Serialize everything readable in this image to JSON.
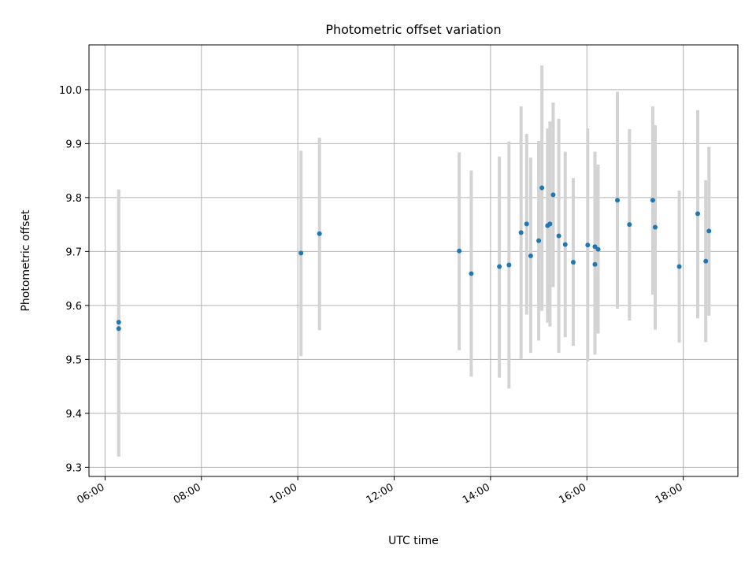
{
  "chart_data": {
    "type": "scatter",
    "title": "Photometric offset variation",
    "xlabel": "UTC time",
    "ylabel": "Photometric offset",
    "grid": true,
    "x_is_time": true,
    "xlim": [
      "05:40",
      "19:08"
    ],
    "ylim": [
      9.283,
      10.083
    ],
    "x_ticks": [
      "06:00",
      "08:00",
      "10:00",
      "12:00",
      "14:00",
      "16:00",
      "18:00"
    ],
    "y_ticks": [
      "9.3",
      "9.4",
      "9.5",
      "9.6",
      "9.7",
      "9.8",
      "9.9",
      "10.0"
    ],
    "colors": {
      "point": "#1f77b4",
      "errorbar": "#d3d3d3"
    },
    "series": [
      {
        "points": [
          {
            "x": "06:17",
            "y": 9.569,
            "lo": 9.32,
            "hi": 9.815
          },
          {
            "x": "06:17",
            "y": 9.557,
            "lo": 9.32,
            "hi": 9.795
          },
          {
            "x": "10:04",
            "y": 9.697,
            "lo": 9.506,
            "hi": 9.887
          },
          {
            "x": "10:27",
            "y": 9.733,
            "lo": 9.554,
            "hi": 9.911
          },
          {
            "x": "13:21",
            "y": 9.701,
            "lo": 9.517,
            "hi": 9.884
          },
          {
            "x": "13:36",
            "y": 9.659,
            "lo": 9.468,
            "hi": 9.85
          },
          {
            "x": "14:11",
            "y": 9.672,
            "lo": 9.466,
            "hi": 9.876
          },
          {
            "x": "14:23",
            "y": 9.675,
            "lo": 9.446,
            "hi": 9.904
          },
          {
            "x": "14:38",
            "y": 9.735,
            "lo": 9.501,
            "hi": 9.969
          },
          {
            "x": "14:45",
            "y": 9.751,
            "lo": 9.583,
            "hi": 9.918
          },
          {
            "x": "14:50",
            "y": 9.692,
            "lo": 9.512,
            "hi": 9.874
          },
          {
            "x": "15:00",
            "y": 9.72,
            "lo": 9.535,
            "hi": 9.905
          },
          {
            "x": "15:04",
            "y": 9.818,
            "lo": 9.59,
            "hi": 10.045
          },
          {
            "x": "15:11",
            "y": 9.748,
            "lo": 9.568,
            "hi": 9.928
          },
          {
            "x": "15:14",
            "y": 9.751,
            "lo": 9.561,
            "hi": 9.941
          },
          {
            "x": "15:18",
            "y": 9.805,
            "lo": 9.634,
            "hi": 9.976
          },
          {
            "x": "15:25",
            "y": 9.729,
            "lo": 9.512,
            "hi": 9.946
          },
          {
            "x": "15:33",
            "y": 9.713,
            "lo": 9.541,
            "hi": 9.885
          },
          {
            "x": "15:43",
            "y": 9.68,
            "lo": 9.525,
            "hi": 9.836
          },
          {
            "x": "16:01",
            "y": 9.712,
            "lo": 9.496,
            "hi": 9.928
          },
          {
            "x": "16:10",
            "y": 9.709,
            "lo": 9.509,
            "hi": 9.885
          },
          {
            "x": "16:10",
            "y": 9.676,
            "lo": 9.509,
            "hi": 9.843
          },
          {
            "x": "16:14",
            "y": 9.704,
            "lo": 9.548,
            "hi": 9.861
          },
          {
            "x": "16:38",
            "y": 9.795,
            "lo": 9.594,
            "hi": 9.996
          },
          {
            "x": "16:53",
            "y": 9.75,
            "lo": 9.572,
            "hi": 9.927
          },
          {
            "x": "17:22",
            "y": 9.795,
            "lo": 9.62,
            "hi": 9.969
          },
          {
            "x": "17:25",
            "y": 9.745,
            "lo": 9.555,
            "hi": 9.934
          },
          {
            "x": "17:55",
            "y": 9.672,
            "lo": 9.531,
            "hi": 9.813
          },
          {
            "x": "18:18",
            "y": 9.77,
            "lo": 9.576,
            "hi": 9.962
          },
          {
            "x": "18:28",
            "y": 9.682,
            "lo": 9.532,
            "hi": 9.832
          },
          {
            "x": "18:32",
            "y": 9.738,
            "lo": 9.581,
            "hi": 9.894
          }
        ]
      }
    ]
  }
}
